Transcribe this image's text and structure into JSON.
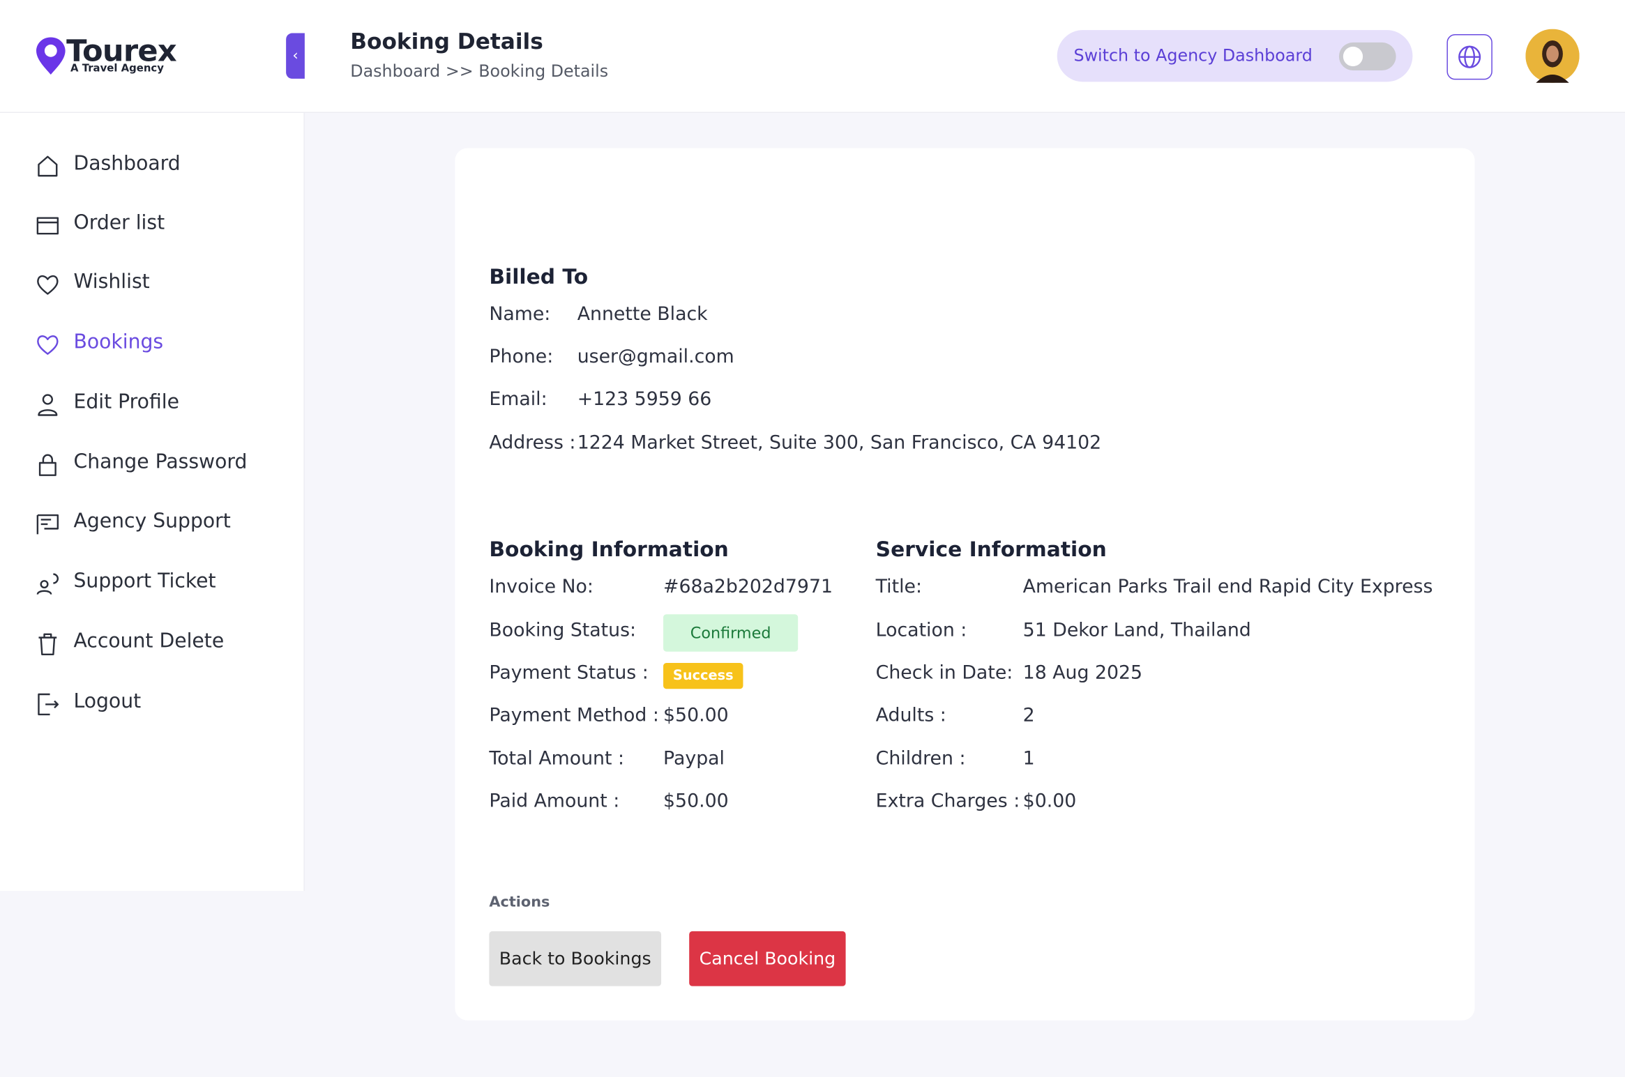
{
  "logo": {
    "name": "Tourex",
    "tagline": "A Travel Agency"
  },
  "header": {
    "title": "Booking Details",
    "breadcrumb": "Dashboard >> Booking Details",
    "switch_label": "Switch to Agency Dashboard"
  },
  "sidebar": {
    "items": [
      "Dashboard",
      "Order list",
      "Wishlist",
      "Bookings",
      "Edit Profile",
      "Change Password",
      "Agency Support",
      "Support Ticket",
      "Account Delete",
      "Logout"
    ],
    "active": "Bookings"
  },
  "billed_to": {
    "title": "Billed To",
    "rows": [
      [
        "Name:",
        "Annette Black"
      ],
      [
        "Phone:",
        "user@gmail.com"
      ],
      [
        "Email:",
        "+123 5959 66"
      ],
      [
        "Address :",
        "1224 Market Street, Suite 300, San Francisco, CA 94102"
      ]
    ]
  },
  "booking_info": {
    "title": "Booking Information",
    "rows": [
      [
        "Invoice No:",
        "#68a2b202d7971"
      ],
      [
        "Booking Status:",
        "Confirmed"
      ],
      [
        "Payment Status :",
        "Success"
      ],
      [
        "Payment Method :",
        "$50.00"
      ],
      [
        "Total Amount :",
        "Paypal"
      ],
      [
        "Paid Amount :",
        "$50.00"
      ]
    ]
  },
  "service_info": {
    "title": "Service Information",
    "rows": [
      [
        "Title:",
        "American Parks Trail end Rapid City Express"
      ],
      [
        "Location :",
        "51 Dekor Land, Thailand"
      ],
      [
        "Check in Date:",
        "18 Aug 2025"
      ],
      [
        "Adults :",
        "2"
      ],
      [
        "Children :",
        "1"
      ],
      [
        "Extra Charges :",
        "$0.00"
      ]
    ]
  },
  "actions": {
    "title": "Actions",
    "back": "Back to Bookings",
    "cancel": "Cancel Booking"
  }
}
